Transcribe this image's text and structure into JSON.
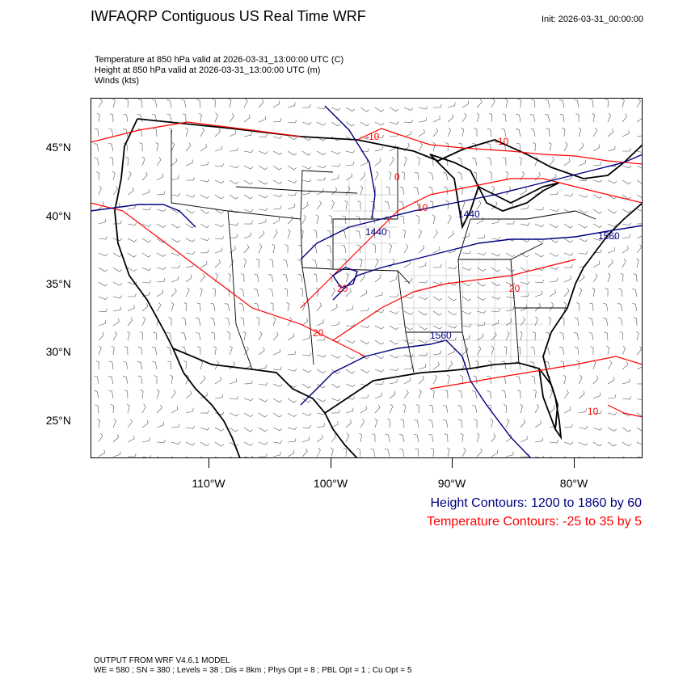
{
  "header": {
    "title": "IWFAQRP Contiguous US Real Time WRF",
    "init": "Init: 2026-03-31_00:00:00",
    "subtitles": [
      "Temperature at 850 hPa valid at 2026-03-31_13:00:00 UTC   (C)",
      "Height at 850 hPa valid at 2026-03-31_13:00:00 UTC   (m)",
      "Winds   (kts)"
    ]
  },
  "axes": {
    "lat_labels": [
      "45°N",
      "40°N",
      "35°N",
      "30°N",
      "25°N"
    ],
    "lon_labels": [
      "110°W",
      "100°W",
      "90°W",
      "80°W"
    ]
  },
  "contour_labels": {
    "height": [
      "1440",
      "1440",
      "1560",
      "1560"
    ],
    "temperature": [
      "-10",
      "-10",
      "0",
      "10",
      "20",
      "20",
      "20",
      "10"
    ]
  },
  "legend": {
    "height": "Height Contours: 1200 to 1860 by 60",
    "temperature": "Temperature Contours: -25 to 35 by 5"
  },
  "colors": {
    "height": "#000080",
    "temperature": "#ff0000"
  },
  "footer": {
    "line1": "OUTPUT FROM WRF V4.6.1 MODEL",
    "line2": "WE = 580 ; SN = 380 ; Levels = 38 ; Dis = 8km ; Phys Opt = 8 ; PBL Opt = 1 ; Cu Opt = 5"
  }
}
